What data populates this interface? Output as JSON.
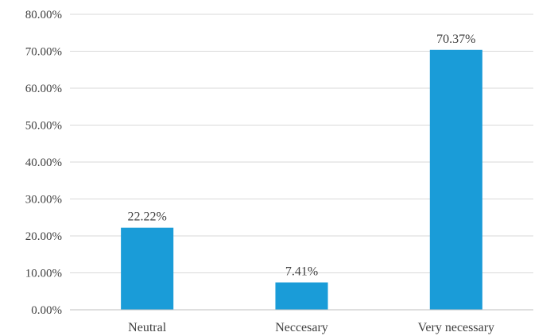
{
  "chart_data": {
    "type": "bar",
    "categories": [
      "Neutral",
      "Neccesary",
      "Very necessary"
    ],
    "values": [
      22.22,
      7.41,
      70.37
    ],
    "data_labels": [
      "22.22%",
      "7.41%",
      "70.37%"
    ],
    "y_ticks": [
      0,
      10,
      20,
      30,
      40,
      50,
      60,
      70,
      80
    ],
    "y_tick_labels": [
      "0.00%",
      "10.00%",
      "20.00%",
      "30.00%",
      "40.00%",
      "50.00%",
      "60.00%",
      "70.00%",
      "80.00%"
    ],
    "ylim": [
      0,
      80
    ],
    "grid": true,
    "legend": "none",
    "bar_color": "#1a9cd8"
  }
}
